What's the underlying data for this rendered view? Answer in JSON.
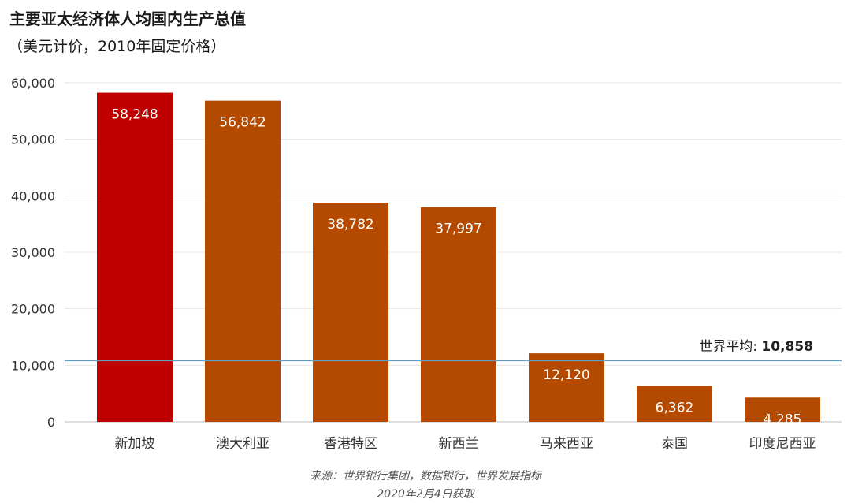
{
  "header": {
    "title": "主要亚太经济体人均国内生产总值",
    "subtitle": "（美元计价，2010年固定价格）"
  },
  "footer": {
    "source": "来源：世界银行集团，数据银行，世界发展指标",
    "retrieved": "2020年2月4日获取"
  },
  "chart_data": {
    "type": "bar",
    "title": "主要亚太经济体人均国内生产总值",
    "subtitle": "（美元计价，2010年固定价格）",
    "xlabel": "",
    "ylabel": "",
    "ylim": [
      0,
      60000
    ],
    "yticks": [
      0,
      10000,
      20000,
      30000,
      40000,
      50000,
      60000
    ],
    "ytick_labels": [
      "0",
      "10,000",
      "20,000",
      "30,000",
      "40,000",
      "50,000",
      "60,000"
    ],
    "categories": [
      "新加坡",
      "澳大利亚",
      "香港特区",
      "新西兰",
      "马来西亚",
      "泰国",
      "印度尼西亚"
    ],
    "values": [
      58248,
      56842,
      38782,
      37997,
      12120,
      6362,
      4285
    ],
    "value_labels": [
      "58,248",
      "56,842",
      "38,782",
      "37,997",
      "12,120",
      "6,362",
      "4,285"
    ],
    "bar_colors": [
      "#c00000",
      "#b34a00",
      "#b34a00",
      "#b34a00",
      "#b34a00",
      "#b34a00",
      "#b34a00"
    ],
    "grid": true,
    "reference_line": {
      "value": 10858,
      "label_prefix": "世界平均:",
      "label_value": "10,858",
      "color": "#5aa0c8"
    }
  }
}
